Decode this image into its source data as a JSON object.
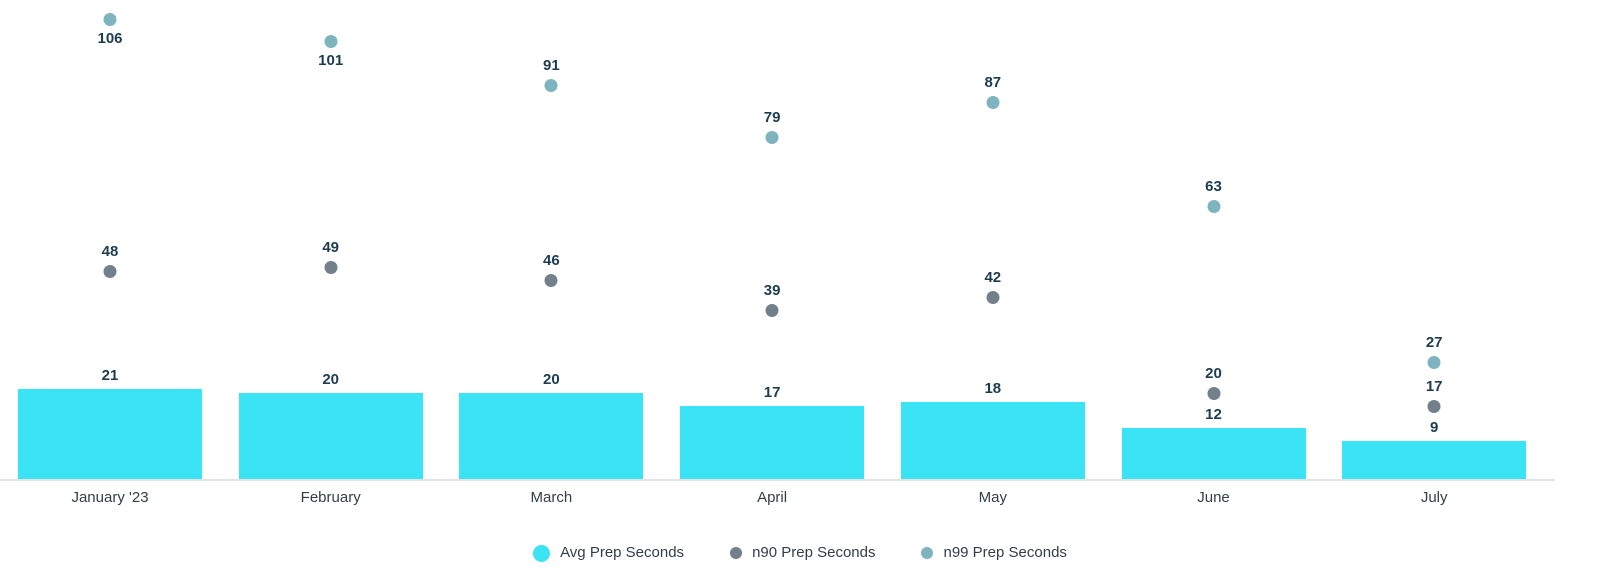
{
  "chart_data": {
    "type": "bar",
    "categories": [
      "January '23",
      "February",
      "March",
      "April",
      "May",
      "June",
      "July"
    ],
    "series": [
      {
        "name": "Avg Prep Seconds",
        "mark": "bar",
        "color": "#3ae4f5",
        "values": [
          21,
          20,
          20,
          17,
          18,
          12,
          9
        ]
      },
      {
        "name": "n90 Prep Seconds",
        "mark": "point",
        "color": "#72808c",
        "values": [
          48,
          49,
          46,
          39,
          42,
          20,
          17
        ]
      },
      {
        "name": "n99 Prep Seconds",
        "mark": "point",
        "color": "#7eb4bf",
        "values": [
          106,
          101,
          91,
          79,
          87,
          63,
          27
        ]
      }
    ],
    "title": "",
    "xlabel": "",
    "ylabel": "",
    "ylim": [
      0,
      111
    ],
    "grid": false,
    "legend_position": "bottom",
    "data_labels": true,
    "colors": {
      "value_label": "#1d3c50",
      "axis_label": "#333e48",
      "axis_line": "#e3e3e5",
      "background": "#ffffff"
    }
  }
}
